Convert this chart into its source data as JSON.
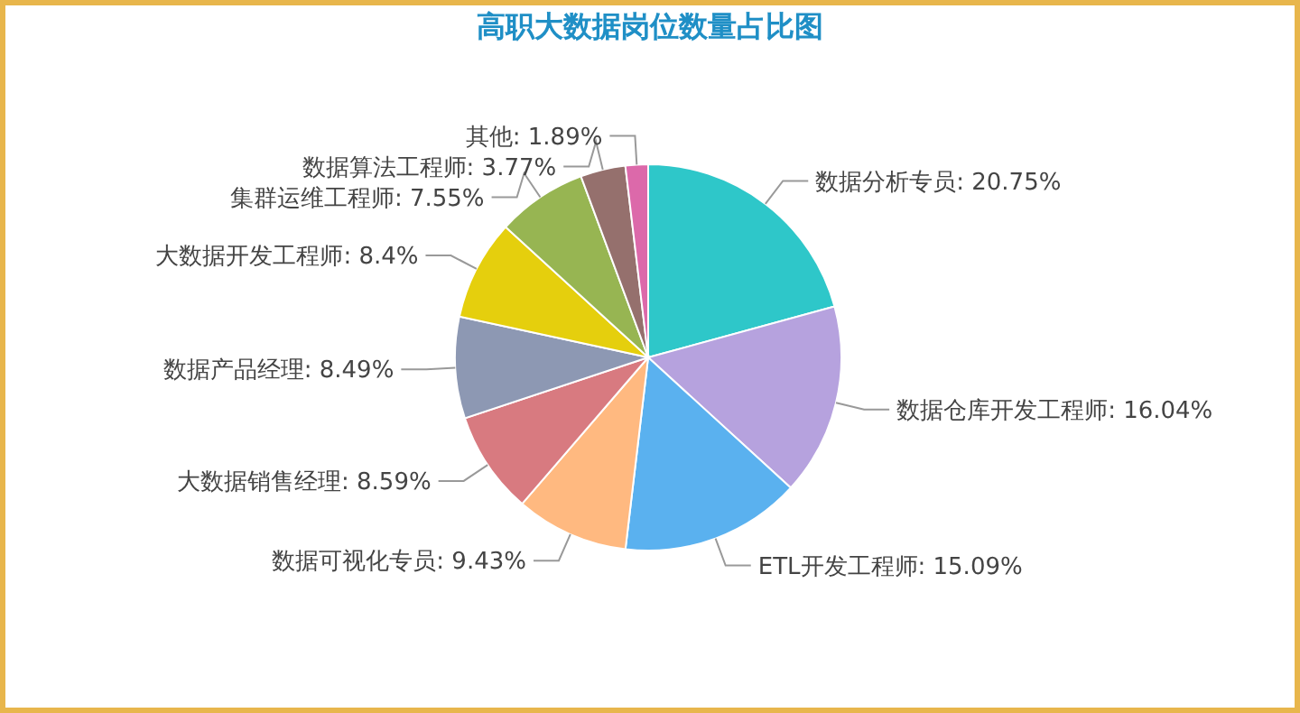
{
  "chart_data": {
    "type": "pie",
    "title": "高职大数据岗位数量占比图",
    "categories": [
      "数据分析专员",
      "数据仓库开发工程师",
      "ETL开发工程师",
      "数据可视化专员",
      "大数据销售经理",
      "数据产品经理",
      "大数据开发工程师",
      "集群运维工程师",
      "数据算法工程师",
      "其他"
    ],
    "values": [
      20.75,
      16.04,
      15.09,
      9.43,
      8.59,
      8.49,
      8.4,
      7.55,
      3.77,
      1.89
    ],
    "value_labels": [
      "20.75%",
      "16.04%",
      "15.09%",
      "9.43%",
      "8.59%",
      "8.49%",
      "8.4%",
      "7.55%",
      "3.77%",
      "1.89%"
    ],
    "colors": [
      "#2ec7c9",
      "#b6a2de",
      "#5ab1ef",
      "#ffb980",
      "#d87a80",
      "#8d98b3",
      "#e5cf0d",
      "#97b552",
      "#95706d",
      "#dc69aa"
    ],
    "data_labels": true
  }
}
